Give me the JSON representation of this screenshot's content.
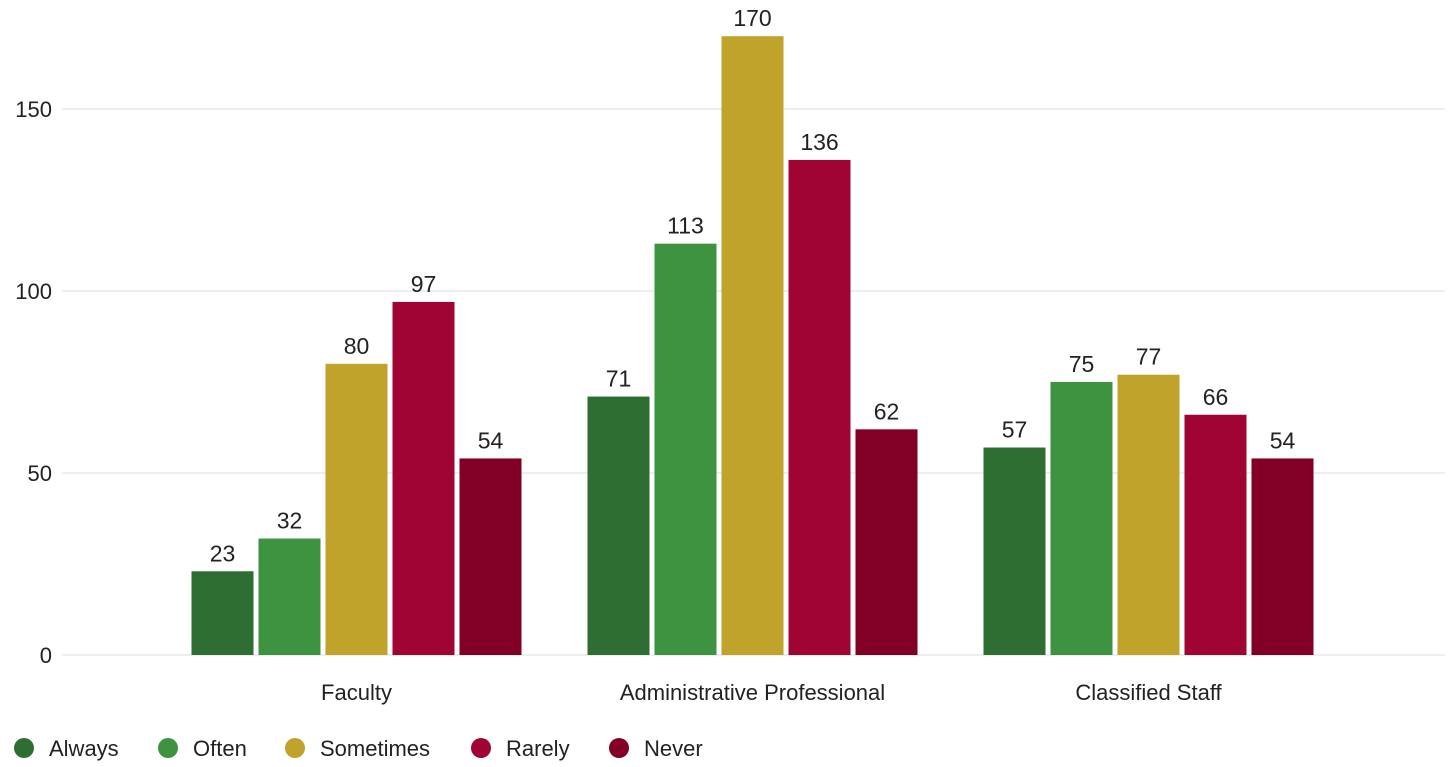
{
  "chart_data": {
    "type": "bar",
    "title": "",
    "xlabel": "",
    "ylabel": "",
    "categories": [
      "Faculty",
      "Administrative Professional",
      "Classified Staff"
    ],
    "series": [
      {
        "name": "Always",
        "color": "#2e6e32",
        "values": [
          23,
          71,
          57
        ]
      },
      {
        "name": "Often",
        "color": "#3d9340",
        "values": [
          32,
          113,
          75
        ]
      },
      {
        "name": "Sometimes",
        "color": "#bfa32b",
        "values": [
          80,
          170,
          77
        ]
      },
      {
        "name": "Rarely",
        "color": "#9f0433",
        "values": [
          97,
          136,
          66
        ]
      },
      {
        "name": "Never",
        "color": "#820026",
        "values": [
          54,
          62,
          54
        ]
      }
    ],
    "ylim": [
      0,
      170
    ],
    "yticks": [
      0,
      50,
      100,
      150
    ],
    "grid": true,
    "data_labels": true,
    "legend_position": "bottom-left"
  }
}
